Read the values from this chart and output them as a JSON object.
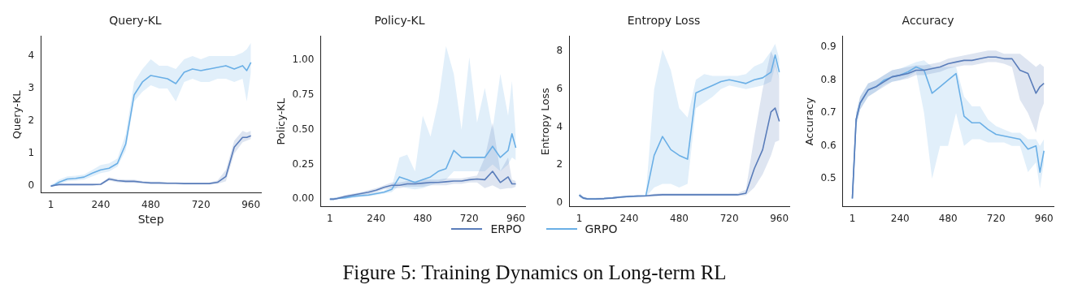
{
  "chart_data": [
    {
      "type": "line",
      "title": "Query-KL",
      "xlabel": "Step",
      "ylabel": "Query-KL",
      "legend": "bottom",
      "grid": false,
      "marker": "none",
      "line_style": "solid",
      "x": [
        1,
        20,
        40,
        80,
        120,
        160,
        200,
        240,
        280,
        320,
        360,
        400,
        440,
        480,
        520,
        560,
        600,
        640,
        680,
        720,
        760,
        800,
        840,
        880,
        920,
        940,
        960
      ],
      "xlim": [
        -47,
        1008
      ],
      "xticks": [
        1,
        240,
        480,
        720,
        960
      ],
      "ylim": [
        -0.21,
        4.6
      ],
      "yticks": [
        0,
        1,
        2,
        3,
        4
      ],
      "series": [
        {
          "name": "ERPO",
          "color": "#5a7dba",
          "values": [
            0,
            0.03,
            0.05,
            0.05,
            0.05,
            0.05,
            0.05,
            0.06,
            0.22,
            0.17,
            0.15,
            0.15,
            0.12,
            0.1,
            0.1,
            0.09,
            0.09,
            0.08,
            0.08,
            0.08,
            0.08,
            0.12,
            0.3,
            1.2,
            1.5,
            1.5,
            1.55
          ],
          "lower": [
            0,
            0,
            0.02,
            0.02,
            0.02,
            0.02,
            0.02,
            0.03,
            0.17,
            0.12,
            0.1,
            0.1,
            0.08,
            0.07,
            0.07,
            0.06,
            0.06,
            0.05,
            0.05,
            0.05,
            0.05,
            0.07,
            0.15,
            1.0,
            1.35,
            1.4,
            1.45
          ],
          "upper": [
            0.02,
            0.06,
            0.08,
            0.08,
            0.08,
            0.08,
            0.08,
            0.09,
            0.28,
            0.22,
            0.2,
            0.2,
            0.16,
            0.14,
            0.14,
            0.12,
            0.12,
            0.11,
            0.11,
            0.11,
            0.11,
            0.18,
            0.5,
            1.4,
            1.7,
            1.65,
            1.7
          ]
        },
        {
          "name": "GRPO",
          "color": "#6aafe6",
          "values": [
            0,
            0.05,
            0.12,
            0.22,
            0.24,
            0.28,
            0.4,
            0.5,
            0.55,
            0.7,
            1.3,
            2.8,
            3.2,
            3.4,
            3.35,
            3.3,
            3.15,
            3.5,
            3.6,
            3.55,
            3.6,
            3.65,
            3.7,
            3.6,
            3.7,
            3.55,
            3.8
          ],
          "lower": [
            0,
            0,
            0.05,
            0.15,
            0.17,
            0.2,
            0.3,
            0.4,
            0.45,
            0.6,
            1.1,
            2.6,
            2.9,
            3.1,
            3.0,
            3.0,
            2.6,
            3.2,
            3.3,
            3.2,
            3.2,
            3.3,
            3.3,
            3.2,
            3.3,
            2.6,
            3.5
          ],
          "upper": [
            0.05,
            0.1,
            0.2,
            0.3,
            0.32,
            0.36,
            0.5,
            0.65,
            0.7,
            0.85,
            1.6,
            3.2,
            3.6,
            3.9,
            3.7,
            3.7,
            3.6,
            3.9,
            4.0,
            3.9,
            4.0,
            4.0,
            4.0,
            4.0,
            4.1,
            4.2,
            4.4
          ]
        }
      ]
    },
    {
      "type": "line",
      "title": "Policy-KL",
      "ylabel": "Policy-KL",
      "legend": "bottom",
      "grid": false,
      "marker": "none",
      "line_style": "solid",
      "x": [
        1,
        20,
        40,
        80,
        120,
        160,
        200,
        240,
        280,
        320,
        360,
        400,
        440,
        480,
        520,
        560,
        600,
        640,
        680,
        720,
        760,
        800,
        840,
        880,
        920,
        940,
        960
      ],
      "xlim": [
        -47,
        1008
      ],
      "xticks": [
        1,
        240,
        480,
        720,
        960
      ],
      "ylim": [
        -0.054,
        1.17
      ],
      "yticks": [
        {
          "value": 0,
          "label": "0.00"
        },
        {
          "value": 0.25,
          "label": "0.25"
        },
        {
          "value": 0.5,
          "label": "0.50"
        },
        {
          "value": 0.75,
          "label": "0.75"
        },
        {
          "value": 1,
          "label": "1.00"
        }
      ],
      "series": [
        {
          "name": "ERPO",
          "color": "#5a7dba",
          "values": [
            0,
            0,
            0.005,
            0.02,
            0.03,
            0.04,
            0.05,
            0.065,
            0.085,
            0.1,
            0.1,
            0.11,
            0.11,
            0.115,
            0.12,
            0.12,
            0.125,
            0.13,
            0.13,
            0.14,
            0.145,
            0.14,
            0.2,
            0.12,
            0.16,
            0.11,
            0.11
          ],
          "lower": [
            0,
            0,
            0,
            0.01,
            0.02,
            0.03,
            0.035,
            0.05,
            0.07,
            0.08,
            0.08,
            0.09,
            0.09,
            0.09,
            0.1,
            0.1,
            0.1,
            0.11,
            0.11,
            0.12,
            0.12,
            0.08,
            0.1,
            0.07,
            0.08,
            0.08,
            0.09
          ],
          "upper": [
            0.01,
            0.01,
            0.015,
            0.03,
            0.04,
            0.05,
            0.065,
            0.08,
            0.1,
            0.12,
            0.12,
            0.13,
            0.13,
            0.14,
            0.14,
            0.14,
            0.15,
            0.15,
            0.15,
            0.16,
            0.17,
            0.3,
            0.55,
            0.2,
            0.3,
            0.14,
            0.13
          ]
        },
        {
          "name": "GRPO",
          "color": "#6aafe6",
          "values": [
            0,
            0,
            0.005,
            0.01,
            0.02,
            0.025,
            0.03,
            0.04,
            0.05,
            0.07,
            0.16,
            0.14,
            0.12,
            0.14,
            0.16,
            0.2,
            0.22,
            0.35,
            0.3,
            0.3,
            0.3,
            0.3,
            0.38,
            0.3,
            0.35,
            0.47,
            0.37
          ],
          "lower": [
            0,
            0,
            0,
            0,
            0.01,
            0.015,
            0.02,
            0.03,
            0.04,
            0.05,
            0.1,
            0.08,
            0.07,
            0.08,
            0.1,
            0.12,
            0.14,
            0.2,
            0.2,
            0.2,
            0.2,
            0.2,
            0.25,
            0.2,
            0.25,
            0.3,
            0.28
          ],
          "upper": [
            0.01,
            0.01,
            0.015,
            0.02,
            0.03,
            0.035,
            0.04,
            0.05,
            0.06,
            0.09,
            0.3,
            0.32,
            0.2,
            0.6,
            0.45,
            0.7,
            1.1,
            0.9,
            0.5,
            1.02,
            0.55,
            0.8,
            0.5,
            0.9,
            0.6,
            0.85,
            0.45
          ]
        }
      ]
    },
    {
      "type": "line",
      "title": "Entropy Loss",
      "ylabel": "Entropy Loss",
      "legend": "bottom",
      "grid": false,
      "marker": "none",
      "line_style": "solid",
      "x": [
        1,
        20,
        40,
        80,
        120,
        160,
        200,
        240,
        280,
        320,
        360,
        400,
        440,
        480,
        520,
        560,
        600,
        640,
        680,
        720,
        760,
        800,
        840,
        880,
        920,
        940,
        960
      ],
      "xlim": [
        -47,
        1008
      ],
      "xticks": [
        1,
        240,
        480,
        720,
        960
      ],
      "ylim": [
        -0.21,
        8.79
      ],
      "yticks": [
        0,
        2,
        4,
        6,
        8
      ],
      "series": [
        {
          "name": "ERPO",
          "color": "#5a7dba",
          "values": [
            0.4,
            0.25,
            0.2,
            0.2,
            0.22,
            0.25,
            0.3,
            0.33,
            0.35,
            0.36,
            0.4,
            0.42,
            0.42,
            0.42,
            0.42,
            0.42,
            0.42,
            0.42,
            0.42,
            0.42,
            0.42,
            0.5,
            1.8,
            2.8,
            4.8,
            5.0,
            4.3
          ],
          "lower": [
            0.3,
            0.18,
            0.15,
            0.15,
            0.17,
            0.2,
            0.25,
            0.28,
            0.3,
            0.31,
            0.33,
            0.35,
            0.35,
            0.35,
            0.35,
            0.35,
            0.35,
            0.35,
            0.35,
            0.35,
            0.35,
            0.4,
            0.8,
            1.5,
            2.5,
            3.2,
            3.3
          ],
          "upper": [
            0.5,
            0.32,
            0.26,
            0.26,
            0.27,
            0.3,
            0.35,
            0.38,
            0.4,
            0.41,
            0.47,
            0.5,
            0.5,
            0.5,
            0.5,
            0.5,
            0.5,
            0.5,
            0.5,
            0.5,
            0.5,
            0.7,
            3.5,
            6.0,
            8.0,
            7.5,
            6.5
          ]
        },
        {
          "name": "GRPO",
          "color": "#6aafe6",
          "values": [
            0.4,
            0.25,
            0.2,
            0.2,
            0.22,
            0.25,
            0.3,
            0.33,
            0.35,
            0.36,
            2.5,
            3.5,
            2.8,
            2.5,
            2.3,
            5.8,
            6.0,
            6.2,
            6.4,
            6.5,
            6.4,
            6.3,
            6.5,
            6.6,
            6.9,
            7.8,
            6.9
          ],
          "lower": [
            0.3,
            0.18,
            0.15,
            0.15,
            0.17,
            0.2,
            0.25,
            0.28,
            0.3,
            0.31,
            0.8,
            1.0,
            1.0,
            0.8,
            1.0,
            5.0,
            5.3,
            5.6,
            6.0,
            6.2,
            6.1,
            6.0,
            6.1,
            6.2,
            6.4,
            7.2,
            6.5
          ],
          "upper": [
            0.5,
            0.32,
            0.26,
            0.26,
            0.27,
            0.3,
            0.35,
            0.38,
            0.4,
            0.41,
            6.0,
            8.1,
            7.0,
            5.0,
            4.5,
            6.5,
            6.8,
            6.7,
            6.7,
            6.7,
            6.7,
            6.8,
            7.2,
            7.4,
            8.0,
            8.4,
            7.6
          ]
        }
      ]
    },
    {
      "type": "line",
      "title": "Accuracy",
      "ylabel": "Accuracy",
      "legend": "bottom",
      "grid": false,
      "marker": "none",
      "line_style": "solid",
      "x": [
        1,
        20,
        40,
        80,
        120,
        160,
        200,
        240,
        280,
        320,
        360,
        400,
        440,
        480,
        520,
        560,
        600,
        640,
        680,
        720,
        760,
        800,
        840,
        880,
        920,
        940,
        960
      ],
      "xlim": [
        -47,
        1008
      ],
      "xticks": [
        1,
        240,
        480,
        720,
        960
      ],
      "ylim": [
        0.415,
        0.933
      ],
      "yticks": [
        0.5,
        0.6,
        0.7,
        0.8,
        0.9
      ],
      "series": [
        {
          "name": "ERPO",
          "color": "#5a7dba",
          "values": [
            0.44,
            0.68,
            0.73,
            0.77,
            0.78,
            0.795,
            0.81,
            0.815,
            0.82,
            0.83,
            0.83,
            0.835,
            0.84,
            0.85,
            0.855,
            0.86,
            0.86,
            0.865,
            0.87,
            0.87,
            0.865,
            0.865,
            0.83,
            0.82,
            0.76,
            0.78,
            0.79
          ],
          "lower": [
            0.43,
            0.66,
            0.71,
            0.75,
            0.765,
            0.78,
            0.795,
            0.8,
            0.805,
            0.815,
            0.815,
            0.82,
            0.825,
            0.835,
            0.84,
            0.845,
            0.845,
            0.85,
            0.855,
            0.855,
            0.85,
            0.84,
            0.74,
            0.7,
            0.64,
            0.7,
            0.73
          ],
          "upper": [
            0.45,
            0.7,
            0.75,
            0.79,
            0.8,
            0.815,
            0.83,
            0.835,
            0.84,
            0.845,
            0.845,
            0.85,
            0.855,
            0.865,
            0.87,
            0.875,
            0.88,
            0.885,
            0.89,
            0.89,
            0.88,
            0.88,
            0.88,
            0.86,
            0.84,
            0.85,
            0.84
          ]
        },
        {
          "name": "GRPO",
          "color": "#6aafe6",
          "values": [
            0.44,
            0.68,
            0.73,
            0.77,
            0.78,
            0.8,
            0.81,
            0.815,
            0.825,
            0.84,
            0.83,
            0.76,
            0.78,
            0.8,
            0.82,
            0.69,
            0.67,
            0.67,
            0.65,
            0.635,
            0.63,
            0.625,
            0.62,
            0.59,
            0.6,
            0.52,
            0.585
          ],
          "lower": [
            0.43,
            0.66,
            0.71,
            0.75,
            0.765,
            0.785,
            0.795,
            0.8,
            0.81,
            0.825,
            0.7,
            0.5,
            0.6,
            0.6,
            0.7,
            0.6,
            0.62,
            0.62,
            0.61,
            0.61,
            0.61,
            0.6,
            0.6,
            0.52,
            0.55,
            0.47,
            0.55
          ],
          "upper": [
            0.45,
            0.7,
            0.75,
            0.79,
            0.8,
            0.815,
            0.83,
            0.835,
            0.845,
            0.855,
            0.86,
            0.84,
            0.84,
            0.84,
            0.84,
            0.75,
            0.72,
            0.72,
            0.68,
            0.66,
            0.65,
            0.64,
            0.64,
            0.62,
            0.62,
            0.6,
            0.62
          ]
        }
      ],
      "annotations": [
        "Figure 5: Training Dynamics on Long-term RL"
      ]
    }
  ]
}
